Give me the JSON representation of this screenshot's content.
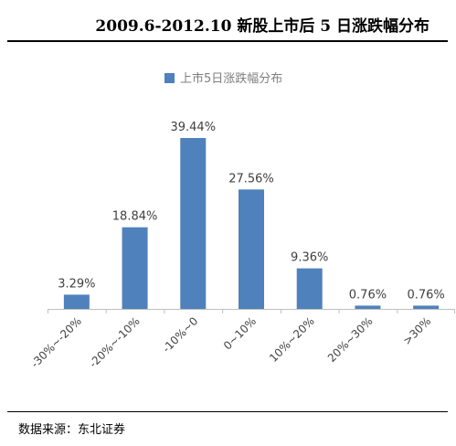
{
  "header": {
    "title": "2009.6-2012.10 新股上市后 5 日涨跌幅分布"
  },
  "footer": {
    "source": "数据来源：东北证券"
  },
  "colors": {
    "bar": "#4f81bd",
    "axis": "#bfbfbf",
    "label": "#404040",
    "legend_text": "#7f7f7f"
  },
  "chart_data": {
    "type": "bar",
    "legend": {
      "label": "上市5日涨跌幅分布",
      "position": "top"
    },
    "categories": [
      "-30%~-20%",
      "-20%~-10%",
      "-10%~0",
      "0~10%",
      "10%~20%",
      "20%~30%",
      ">30%"
    ],
    "values": [
      3.29,
      18.84,
      39.44,
      27.56,
      9.36,
      0.76,
      0.76
    ],
    "data_labels": [
      "3.29%",
      "18.84%",
      "39.44%",
      "27.56%",
      "9.36%",
      "0.76%",
      "0.76%"
    ],
    "series": [
      {
        "name": "上市5日涨跌幅分布",
        "values": [
          3.29,
          18.84,
          39.44,
          27.56,
          9.36,
          0.76,
          0.76
        ]
      }
    ],
    "unit": "%",
    "ylim": [
      0,
      40
    ],
    "grid": false
  }
}
